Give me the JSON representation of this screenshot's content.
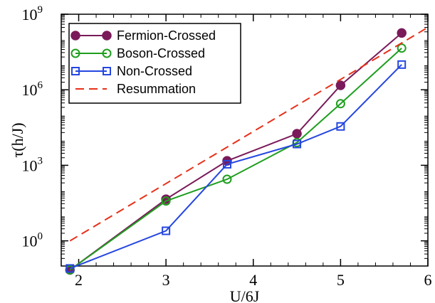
{
  "chart_data": {
    "type": "line",
    "xlabel": "U/6J",
    "ylabel": "τ(h/J)",
    "xlim": [
      1.8,
      6.0
    ],
    "ylim_log10": [
      -1.0,
      9.0
    ],
    "y_scale": "log",
    "grid": false,
    "legend_position": "top-left",
    "x_ticks": [
      {
        "value": 2,
        "label": "2"
      },
      {
        "value": 3,
        "label": "3"
      },
      {
        "value": 4,
        "label": "4"
      },
      {
        "value": 5,
        "label": "5"
      },
      {
        "value": 6,
        "label": "6"
      }
    ],
    "y_ticks": [
      {
        "exp": 0,
        "base": "10",
        "sup": "0"
      },
      {
        "exp": 3,
        "base": "10",
        "sup": "3"
      },
      {
        "exp": 6,
        "base": "10",
        "sup": "6"
      },
      {
        "exp": 9,
        "base": "10",
        "sup": "9"
      }
    ],
    "series": [
      {
        "name": "Fermion-Crossed",
        "color": "#7a1a5a",
        "marker": "filled-circle",
        "line": "solid",
        "x": [
          1.9,
          3.0,
          3.7,
          4.5,
          5.0,
          5.7
        ],
        "y": [
          0.07,
          45,
          1500,
          18000,
          1500000,
          180000000
        ]
      },
      {
        "name": "Boson-Crossed",
        "color": "#1f9e1f",
        "marker": "open-circle",
        "line": "solid",
        "x": [
          1.9,
          3.0,
          3.7,
          4.5,
          5.0,
          5.7
        ],
        "y": [
          0.07,
          38,
          280,
          8000,
          280000,
          45000000
        ]
      },
      {
        "name": "Non-Crossed",
        "color": "#2546e0",
        "marker": "open-square",
        "line": "solid",
        "x": [
          1.9,
          3.0,
          3.7,
          4.5,
          5.0,
          5.7
        ],
        "y": [
          0.08,
          2.5,
          1100,
          7000,
          35000,
          10000000
        ]
      },
      {
        "name": "Resummation",
        "color": "#e8311a",
        "marker": "none",
        "line": "dashed",
        "x": [
          1.9,
          6.0
        ],
        "y": [
          1.0,
          300000000
        ]
      }
    ]
  }
}
